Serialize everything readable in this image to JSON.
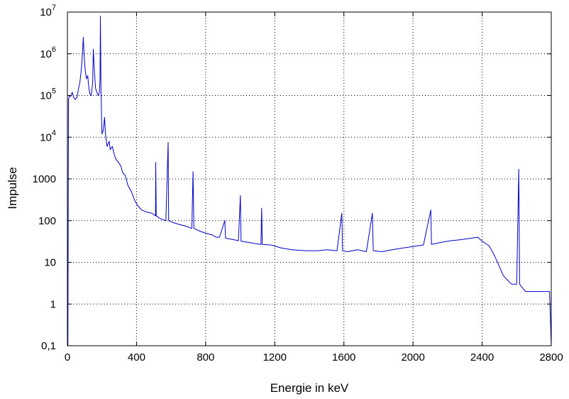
{
  "chart_data": {
    "type": "line",
    "title": "",
    "xlabel": "Energie in keV",
    "ylabel": "Impulse",
    "xlim": [
      0,
      2800
    ],
    "ylim": [
      0.1,
      10000000
    ],
    "y_scale": "log",
    "grid": true,
    "grid_style": "dotted",
    "legend": "none",
    "x_ticks": [
      0,
      400,
      800,
      1200,
      1600,
      2000,
      2400,
      2800
    ],
    "x_tick_labels": [
      "0",
      "400",
      "800",
      "1200",
      "1600",
      "2000",
      "2400",
      "2800"
    ],
    "y_ticks": [
      0.1,
      1,
      10,
      100,
      1000,
      10000,
      100000,
      1000000,
      10000000
    ],
    "y_tick_labels": [
      {
        "base": "0,1",
        "exp": ""
      },
      {
        "base": "1",
        "exp": ""
      },
      {
        "base": "10",
        "exp": ""
      },
      {
        "base": "100",
        "exp": ""
      },
      {
        "base": "1000",
        "exp": ""
      },
      {
        "base": "10",
        "exp": "4"
      },
      {
        "base": "10",
        "exp": "5"
      },
      {
        "base": "10",
        "exp": "6"
      },
      {
        "base": "10",
        "exp": "7"
      }
    ],
    "series": [
      {
        "color": "#0000cc",
        "points": [
          [
            0,
            0.1
          ],
          [
            3,
            0.1
          ],
          [
            6,
            80000
          ],
          [
            12,
            100000
          ],
          [
            20,
            95000
          ],
          [
            28,
            120000
          ],
          [
            36,
            90000
          ],
          [
            45,
            80000
          ],
          [
            55,
            90000
          ],
          [
            65,
            150000
          ],
          [
            72,
            200000
          ],
          [
            80,
            400000
          ],
          [
            87,
            1000000
          ],
          [
            92,
            2500000
          ],
          [
            97,
            900000
          ],
          [
            103,
            400000
          ],
          [
            110,
            250000
          ],
          [
            118,
            300000
          ],
          [
            124,
            150000
          ],
          [
            130,
            110000
          ],
          [
            138,
            100000
          ],
          [
            146,
            200000
          ],
          [
            150,
            1300000
          ],
          [
            156,
            400000
          ],
          [
            163,
            150000
          ],
          [
            170,
            120000
          ],
          [
            178,
            100000
          ],
          [
            185,
            120000
          ],
          [
            189,
            250000
          ],
          [
            191,
            8000000
          ],
          [
            194,
            150000
          ],
          [
            200,
            12000
          ],
          [
            208,
            15000
          ],
          [
            215,
            30000
          ],
          [
            220,
            12000
          ],
          [
            230,
            6000
          ],
          [
            242,
            8000
          ],
          [
            248,
            5000
          ],
          [
            260,
            6000
          ],
          [
            270,
            4000
          ],
          [
            280,
            3000
          ],
          [
            295,
            2500
          ],
          [
            310,
            2000
          ],
          [
            320,
            1400
          ],
          [
            335,
            1200
          ],
          [
            350,
            700
          ],
          [
            370,
            500
          ],
          [
            390,
            300
          ],
          [
            410,
            220
          ],
          [
            430,
            180
          ],
          [
            460,
            160
          ],
          [
            490,
            150
          ],
          [
            510,
            130
          ],
          [
            511,
            2500
          ],
          [
            514,
            130
          ],
          [
            540,
            110
          ],
          [
            570,
            100
          ],
          [
            583,
            7500
          ],
          [
            586,
            100
          ],
          [
            610,
            90
          ],
          [
            650,
            80
          ],
          [
            680,
            75
          ],
          [
            720,
            65
          ],
          [
            727,
            1500
          ],
          [
            732,
            65
          ],
          [
            770,
            55
          ],
          [
            800,
            50
          ],
          [
            840,
            45
          ],
          [
            860,
            40
          ],
          [
            880,
            40
          ],
          [
            911,
            100
          ],
          [
            915,
            38
          ],
          [
            960,
            35
          ],
          [
            990,
            33
          ],
          [
            1001,
            400
          ],
          [
            1005,
            32
          ],
          [
            1050,
            30
          ],
          [
            1090,
            28
          ],
          [
            1120,
            27
          ],
          [
            1124,
            200
          ],
          [
            1128,
            27
          ],
          [
            1180,
            26
          ],
          [
            1240,
            22
          ],
          [
            1300,
            20
          ],
          [
            1380,
            19
          ],
          [
            1450,
            19
          ],
          [
            1500,
            20
          ],
          [
            1560,
            19
          ],
          [
            1588,
            150
          ],
          [
            1592,
            19
          ],
          [
            1620,
            18
          ],
          [
            1680,
            20
          ],
          [
            1730,
            18
          ],
          [
            1765,
            150
          ],
          [
            1770,
            19
          ],
          [
            1820,
            18
          ],
          [
            1880,
            20
          ],
          [
            1940,
            22
          ],
          [
            2000,
            24
          ],
          [
            2060,
            26
          ],
          [
            2103,
            180
          ],
          [
            2107,
            27
          ],
          [
            2160,
            30
          ],
          [
            2220,
            33
          ],
          [
            2280,
            35
          ],
          [
            2340,
            38
          ],
          [
            2375,
            40
          ],
          [
            2390,
            35
          ],
          [
            2410,
            30
          ],
          [
            2440,
            25
          ],
          [
            2470,
            15
          ],
          [
            2500,
            8
          ],
          [
            2520,
            5
          ],
          [
            2540,
            4
          ],
          [
            2570,
            3
          ],
          [
            2600,
            3
          ],
          [
            2612,
            1700
          ],
          [
            2617,
            3
          ],
          [
            2650,
            2
          ],
          [
            2700,
            2
          ],
          [
            2750,
            2
          ],
          [
            2790,
            2
          ],
          [
            2800,
            0.1
          ]
        ]
      }
    ]
  }
}
